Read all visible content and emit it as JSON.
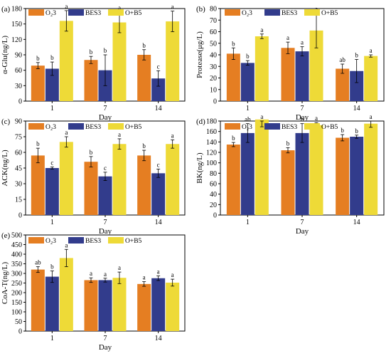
{
  "colors": {
    "O3": "#e57e22",
    "BES3": "#323c8c",
    "O+B5": "#eeda37"
  },
  "legend_labels": [
    "O₂3",
    "BES3",
    "O+B5"
  ],
  "chart_data": [
    {
      "type": "bar",
      "panel": "(a)",
      "xlabel": "Day",
      "ylabel": "α-Glu(ng/L)",
      "categories": [
        "1",
        "7",
        "14"
      ],
      "ylim": [
        0,
        180
      ],
      "yticks": [
        0,
        30,
        60,
        90,
        120,
        150,
        180
      ],
      "legend": "top-left",
      "grid": false,
      "series": [
        {
          "name": "O₂3",
          "values": [
            69,
            80,
            90
          ],
          "errors": [
            6,
            7,
            10
          ],
          "letters": [
            "b",
            "b",
            "b"
          ]
        },
        {
          "name": "BES3",
          "values": [
            63,
            60,
            44
          ],
          "errors": [
            13,
            30,
            15
          ],
          "letters": [
            "b",
            "b",
            "c"
          ]
        },
        {
          "name": "O+B5",
          "values": [
            156,
            153,
            155
          ],
          "errors": [
            20,
            20,
            20
          ],
          "letters": [
            "a",
            "a",
            "a"
          ]
        }
      ]
    },
    {
      "type": "bar",
      "panel": "(b)",
      "xlabel": "Day",
      "ylabel": "Protease(μg/L)",
      "categories": [
        "1",
        "7",
        "14"
      ],
      "ylim": [
        0,
        80
      ],
      "yticks": [
        0,
        10,
        20,
        30,
        40,
        50,
        60,
        70,
        80
      ],
      "legend": "top",
      "grid": false,
      "series": [
        {
          "name": "O₂3",
          "values": [
            41,
            46,
            28
          ],
          "errors": [
            5,
            5,
            4
          ],
          "letters": [
            "b",
            "a",
            "ab"
          ]
        },
        {
          "name": "BES3",
          "values": [
            33,
            43,
            26
          ],
          "errors": [
            2,
            4,
            10
          ],
          "letters": [
            "b",
            "a",
            "b"
          ]
        },
        {
          "name": "O+B5",
          "values": [
            56,
            61,
            39
          ],
          "errors": [
            2,
            15,
            1
          ],
          "letters": [
            "a",
            "a",
            "a"
          ]
        }
      ]
    },
    {
      "type": "bar",
      "panel": "(c)",
      "xlabel": "Day",
      "ylabel": "ACK(ng/L)",
      "categories": [
        "1",
        "7",
        "14"
      ],
      "ylim": [
        0,
        90
      ],
      "yticks": [
        0,
        15,
        30,
        45,
        60,
        75,
        90
      ],
      "legend": "top-left",
      "grid": false,
      "series": [
        {
          "name": "O₂3",
          "values": [
            57,
            51,
            57
          ],
          "errors": [
            7,
            5,
            5
          ],
          "letters": [
            "b",
            "b",
            "b"
          ]
        },
        {
          "name": "BES3",
          "values": [
            45,
            37,
            40
          ],
          "errors": [
            1,
            4,
            4
          ],
          "letters": [
            "c",
            "c",
            "c"
          ]
        },
        {
          "name": "O+B5",
          "values": [
            70,
            68,
            68
          ],
          "errors": [
            5,
            5,
            4
          ],
          "letters": [
            "a",
            "a",
            "a"
          ]
        }
      ]
    },
    {
      "type": "bar",
      "panel": "(d)",
      "xlabel": "Day",
      "ylabel": "BK(ng/L)",
      "categories": [
        "1",
        "7",
        "14"
      ],
      "ylim": [
        0,
        180
      ],
      "yticks": [
        0,
        20,
        40,
        60,
        80,
        100,
        120,
        140,
        160,
        180
      ],
      "legend": "top",
      "grid": false,
      "series": [
        {
          "name": "O₂3",
          "values": [
            135,
            124,
            148
          ],
          "errors": [
            4,
            5,
            6
          ],
          "letters": [
            "b",
            "b",
            "b"
          ]
        },
        {
          "name": "BES3",
          "values": [
            157,
            157,
            150
          ],
          "errors": [
            18,
            18,
            3
          ],
          "letters": [
            "ab",
            "b",
            "b"
          ]
        },
        {
          "name": "O+B5",
          "values": [
            183,
            172,
            175
          ],
          "errors": [
            14,
            5,
            7
          ],
          "letters": [
            "a",
            "a",
            "a"
          ]
        }
      ]
    },
    {
      "type": "bar",
      "panel": "(e)",
      "xlabel": "Day",
      "ylabel": "CoA-T(ng/L)",
      "categories": [
        "1",
        "7",
        "14"
      ],
      "ylim": [
        0,
        500
      ],
      "yticks": [
        0,
        50,
        100,
        150,
        200,
        250,
        300,
        350,
        400,
        450,
        500
      ],
      "legend": "top-left",
      "grid": false,
      "series": [
        {
          "name": "O₂3",
          "values": [
            320,
            265,
            245
          ],
          "errors": [
            15,
            12,
            12
          ],
          "letters": [
            "ab",
            "a",
            "a"
          ]
        },
        {
          "name": "BES3",
          "values": [
            283,
            265,
            275
          ],
          "errors": [
            30,
            10,
            12
          ],
          "letters": [
            "b",
            "a",
            "a"
          ]
        },
        {
          "name": "O+B5",
          "values": [
            380,
            277,
            252
          ],
          "errors": [
            45,
            30,
            18
          ],
          "letters": [
            "a",
            "a",
            "a"
          ]
        }
      ]
    }
  ]
}
